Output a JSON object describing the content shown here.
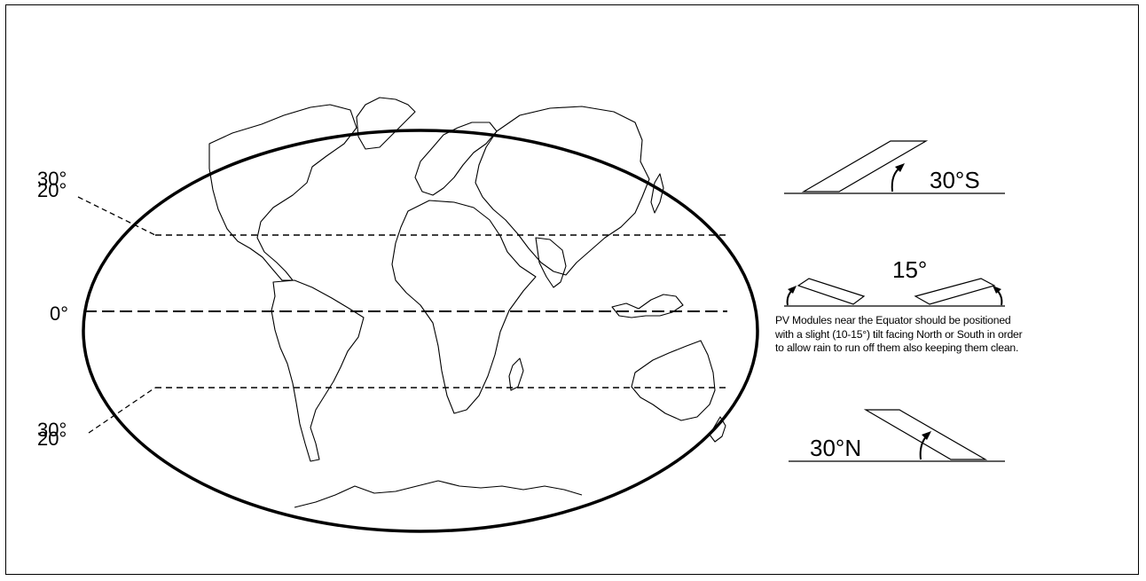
{
  "latitudes": {
    "upper_a": "30°",
    "upper_b": "20°",
    "equator": "0°",
    "lower_a": "30°",
    "lower_b": "20°"
  },
  "tilts": {
    "south": "30°S",
    "equator": "15°",
    "north": "30°N"
  },
  "note_lines": [
    "PV Modules near the Equator should be positioned",
    "with a slight (10-15°) tilt facing North or South in order",
    "to allow rain to run off them also keeping them clean."
  ],
  "colors": {
    "line": "#000000",
    "background": "#ffffff"
  }
}
